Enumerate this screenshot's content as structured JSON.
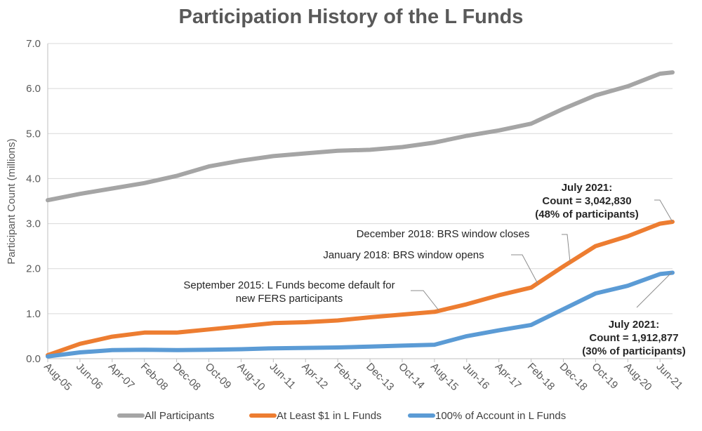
{
  "chart_data": {
    "type": "line",
    "title": "Participation History of the L Funds",
    "ylabel": "Participant Count (millions)",
    "xlabel": "",
    "ylim": [
      0,
      7
    ],
    "yticks": [
      "0.0",
      "1.0",
      "2.0",
      "3.0",
      "4.0",
      "5.0",
      "6.0",
      "7.0"
    ],
    "grid": true,
    "legend_position": "bottom",
    "x_tick_labels": [
      "Aug-05",
      "Jun-06",
      "Apr-07",
      "Feb-08",
      "Dec-08",
      "Oct-09",
      "Aug-10",
      "Jun-11",
      "Apr-12",
      "Feb-13",
      "Dec-13",
      "Oct-14",
      "Aug-15",
      "Jun-16",
      "Apr-17",
      "Feb-18",
      "Dec-18",
      "Oct-19",
      "Aug-20",
      "Jun-21"
    ],
    "x": [
      "Aug-05",
      "Jun-06",
      "Apr-07",
      "Feb-08",
      "Dec-08",
      "Oct-09",
      "Aug-10",
      "Jun-11",
      "Apr-12",
      "Feb-13",
      "Dec-13",
      "Oct-14",
      "Aug-15",
      "Jun-16",
      "Apr-17",
      "Feb-18",
      "Dec-18",
      "Oct-19",
      "Aug-20",
      "Jun-21",
      "Jul-21"
    ],
    "series": [
      {
        "name": "All Participants",
        "color": "#a5a5a5",
        "values": [
          3.52,
          3.66,
          3.78,
          3.9,
          4.06,
          4.27,
          4.4,
          4.5,
          4.56,
          4.62,
          4.64,
          4.7,
          4.8,
          4.95,
          5.07,
          5.22,
          5.55,
          5.85,
          6.05,
          6.33,
          6.36
        ]
      },
      {
        "name": "At Least $1 in L Funds",
        "color": "#ed7d31",
        "values": [
          0.08,
          0.33,
          0.49,
          0.58,
          0.58,
          0.65,
          0.72,
          0.79,
          0.81,
          0.85,
          0.92,
          0.98,
          1.04,
          1.21,
          1.41,
          1.58,
          2.05,
          2.5,
          2.72,
          3.0,
          3.04
        ]
      },
      {
        "name": "100% of Account in L Funds",
        "color": "#5b9bd5",
        "values": [
          0.05,
          0.14,
          0.19,
          0.2,
          0.19,
          0.2,
          0.21,
          0.23,
          0.24,
          0.25,
          0.27,
          0.29,
          0.31,
          0.5,
          0.63,
          0.75,
          1.1,
          1.45,
          1.62,
          1.88,
          1.91
        ]
      }
    ],
    "annotations": {
      "sept2015": [
        "September 2015: L Funds become default for",
        "new FERS participants"
      ],
      "jan2018": "January 2018: BRS window opens",
      "dec2018": "December 2018: BRS window closes",
      "july_orange": [
        "July 2021:",
        "Count = 3,042,830",
        "(48% of participants)"
      ],
      "july_blue": [
        "July 2021:",
        "Count = 1,912,877",
        "(30% of participants)"
      ]
    }
  }
}
